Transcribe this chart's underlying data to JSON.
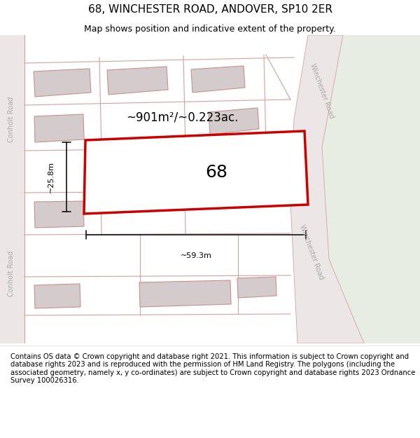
{
  "title": "68, WINCHESTER ROAD, ANDOVER, SP10 2ER",
  "subtitle": "Map shows position and indicative extent of the property.",
  "footer": "Contains OS data © Crown copyright and database right 2021. This information is subject to Crown copyright and database rights 2023 and is reproduced with the permission of HM Land Registry. The polygons (including the associated geometry, namely x, y co-ordinates) are subject to Crown copyright and database rights 2023 Ordnance Survey 100026316.",
  "area_label": "~901m²/~0.223ac.",
  "width_label": "~59.3m",
  "height_label": "~25.8m",
  "number_label": "68",
  "road_label_right_top": "Winchester Road",
  "road_label_right_bot": "Winchester Road",
  "road_label_left_top": "Conholt Road",
  "road_label_left_bot": "Conholt Road",
  "bg_color": "#f2eeee",
  "green_area_color": "#e8ede4",
  "road_fill_color": "#ede6e6",
  "road_edge_color": "#d4a0a0",
  "building_fill": "#d4cccc",
  "building_edge": "#c89090",
  "plot_fill": "#ffffff",
  "plot_edge": "#cc0000",
  "dim_color": "#111111",
  "title_fontsize": 11,
  "subtitle_fontsize": 9,
  "footer_fontsize": 7.2,
  "area_fontsize": 12,
  "dim_fontsize": 8,
  "number_fontsize": 18,
  "road_label_fontsize": 7
}
